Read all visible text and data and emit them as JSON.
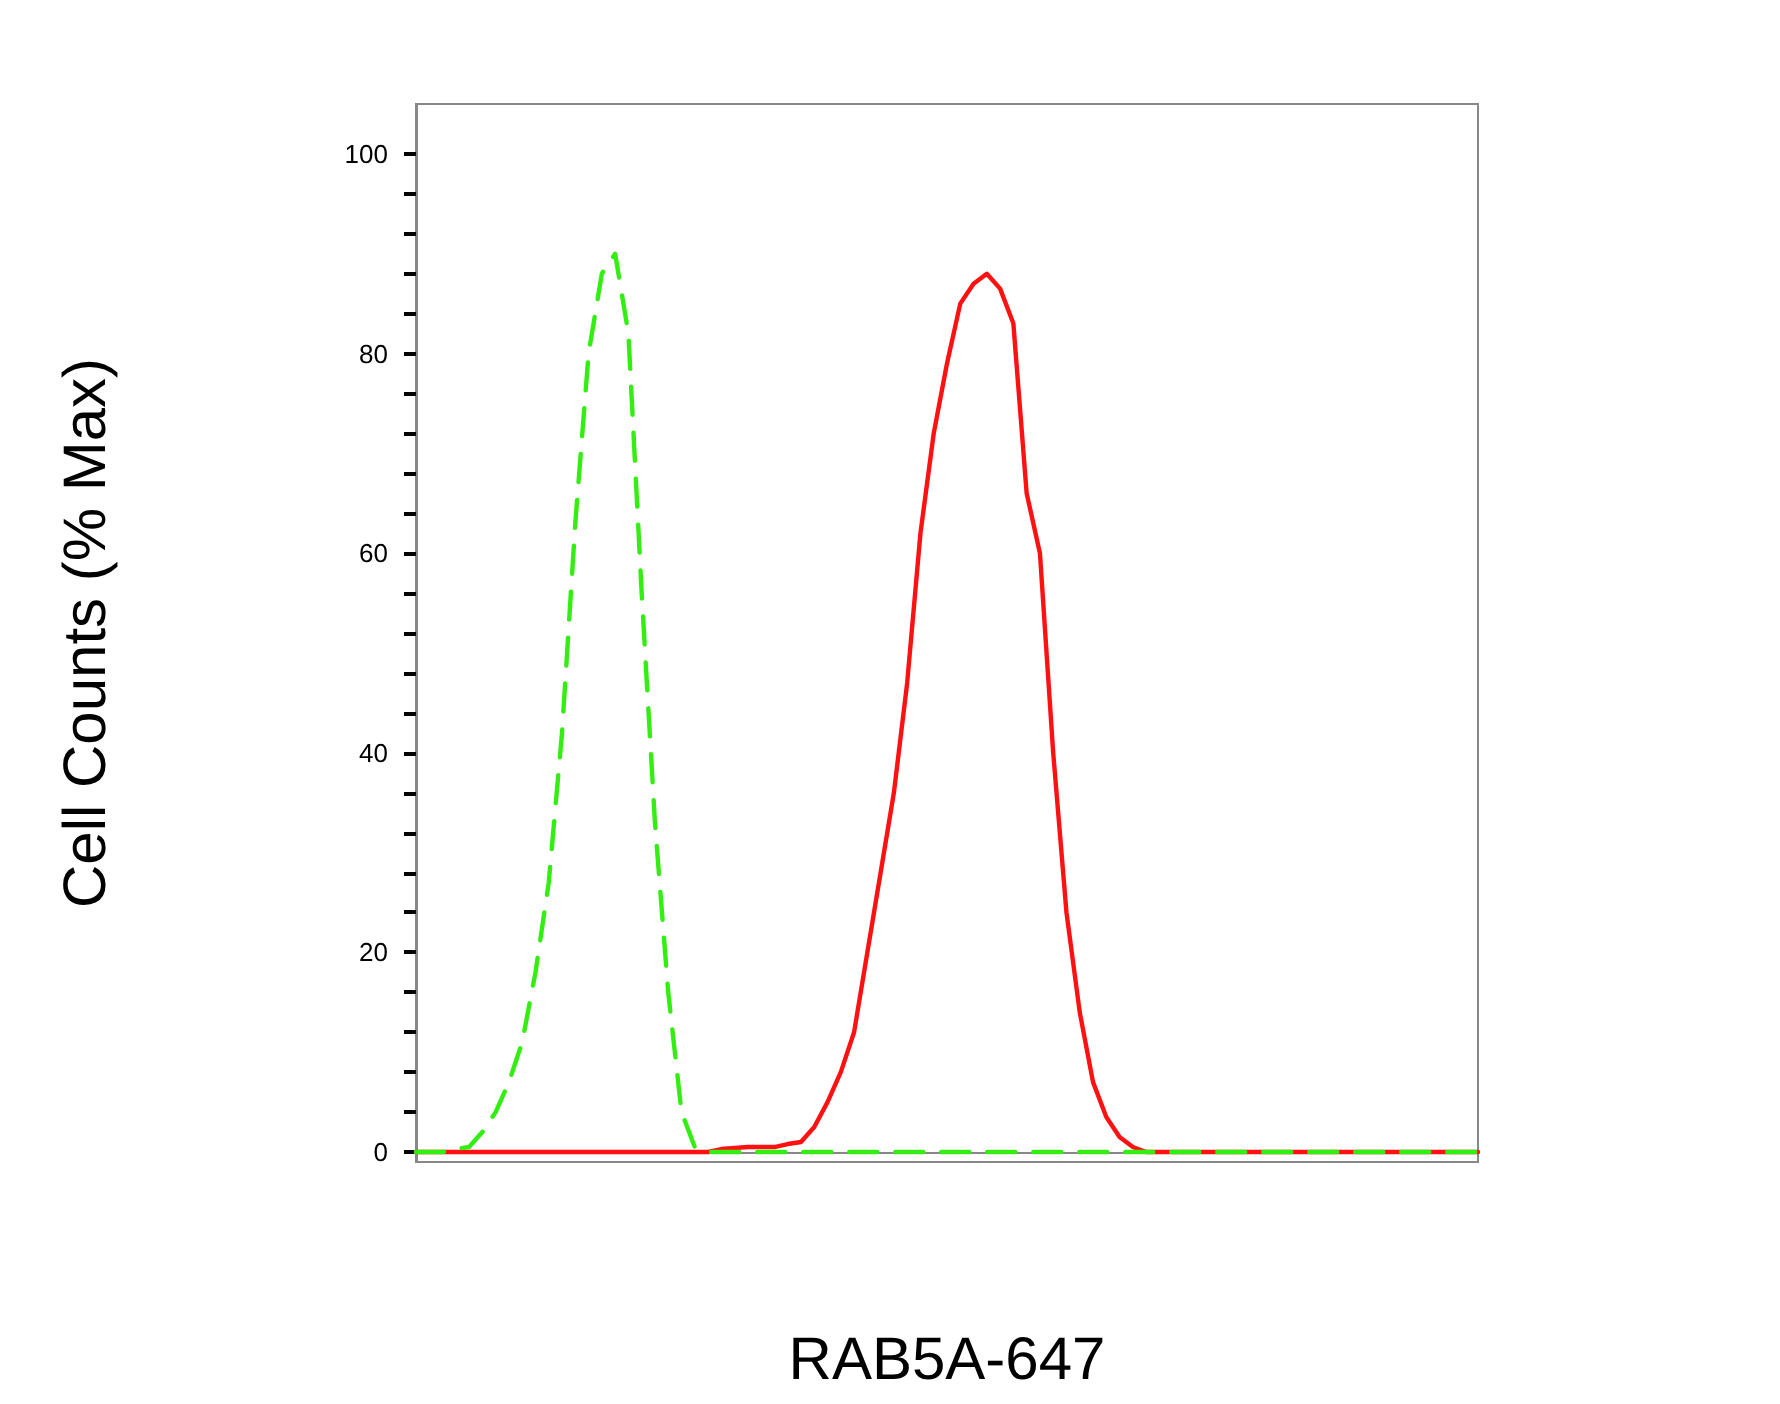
{
  "chart_data": {
    "type": "line",
    "xlabel": "RAB5A-647",
    "ylabel": "Cell Counts (% Max)",
    "categories": [
      null,
      null,
      null,
      null,
      null,
      null,
      null,
      null,
      null,
      null,
      null,
      null,
      null,
      null,
      null,
      null,
      null,
      null,
      null,
      null,
      null,
      null,
      null,
      null,
      null,
      null,
      null,
      null,
      null,
      null,
      null,
      null,
      null,
      null,
      null,
      null,
      null,
      null,
      null,
      null,
      null,
      null,
      null,
      null,
      null,
      null,
      null,
      null,
      null,
      null,
      null,
      null,
      null,
      null,
      null,
      null,
      null,
      null,
      null,
      null,
      null,
      null,
      null,
      null,
      null,
      null,
      null,
      null,
      null,
      null,
      null,
      null,
      null,
      null,
      null,
      null,
      null,
      null,
      null,
      null,
      null
    ],
    "series": [
      {
        "color": "#33ee11",
        "line_style": "dashed",
        "values": [
          0,
          0,
          0,
          0.3,
          0.5,
          2,
          4,
          7,
          11,
          18,
          27,
          42,
          63,
          80,
          88,
          90,
          82,
          56,
          33,
          16,
          4,
          0.5,
          0,
          0,
          0,
          0,
          0,
          0,
          0,
          0,
          0,
          0,
          0,
          0,
          0,
          0,
          0,
          0,
          0,
          0,
          0,
          0,
          0,
          0,
          0,
          0,
          0,
          0,
          0,
          0,
          0,
          0,
          0,
          0,
          0,
          0,
          0,
          0,
          0,
          0,
          0,
          0,
          0,
          0,
          0,
          0,
          0,
          0,
          0,
          0,
          0,
          0,
          0,
          0,
          0,
          0,
          0,
          0,
          0,
          0,
          0
        ]
      },
      {
        "color": "#ff1111",
        "line_style": "solid",
        "values": [
          0,
          0,
          0,
          0,
          0,
          0,
          0,
          0,
          0,
          0,
          0,
          0,
          0,
          0,
          0,
          0,
          0,
          0,
          0,
          0,
          0,
          0,
          0,
          0.3,
          0.4,
          0.5,
          0.5,
          0.5,
          0.8,
          1,
          2.5,
          5,
          8,
          12,
          20,
          28,
          36,
          47,
          62,
          72,
          79,
          85,
          87,
          88,
          86.5,
          83,
          66,
          60,
          40,
          24,
          14,
          7,
          3.5,
          1.5,
          0.5,
          0,
          0,
          0,
          0,
          0,
          0,
          0,
          0,
          0,
          0,
          0,
          0,
          0,
          0,
          0,
          0,
          0,
          0,
          0,
          0,
          0,
          0,
          0,
          0,
          0,
          0
        ]
      }
    ],
    "ylim": [
      -1,
      105
    ],
    "yticks": [
      0,
      {
        "value": 4,
        "label": null
      },
      {
        "value": 8,
        "label": null
      },
      {
        "value": 12,
        "label": null
      },
      {
        "value": 16,
        "label": null
      },
      20,
      {
        "value": 24,
        "label": null
      },
      {
        "value": 28,
        "label": null
      },
      {
        "value": 32,
        "label": null
      },
      {
        "value": 36,
        "label": null
      },
      40,
      {
        "value": 44,
        "label": null
      },
      {
        "value": 48,
        "label": null
      },
      {
        "value": 52,
        "label": null
      },
      {
        "value": 56,
        "label": null
      },
      60,
      {
        "value": 64,
        "label": null
      },
      {
        "value": 68,
        "label": null
      },
      {
        "value": 72,
        "label": null
      },
      {
        "value": 76,
        "label": null
      },
      80,
      {
        "value": 84,
        "label": null
      },
      {
        "value": 88,
        "label": null
      },
      {
        "value": 92,
        "label": null
      },
      {
        "value": 96,
        "label": null
      },
      100
    ],
    "tick_labels": "y"
  }
}
